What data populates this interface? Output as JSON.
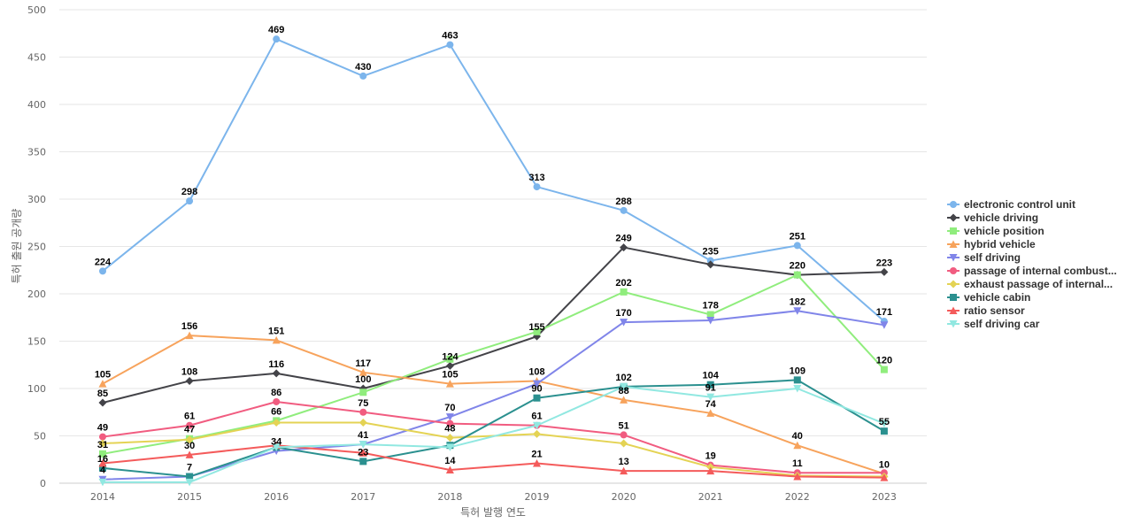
{
  "chart_data": {
    "type": "line",
    "title": "",
    "xlabel": "특허 발행 연도",
    "ylabel": "특허 출원 공개량",
    "categories": [
      "2014",
      "2015",
      "2016",
      "2017",
      "2018",
      "2019",
      "2020",
      "2021",
      "2022",
      "2023"
    ],
    "y_ticks": [
      "0",
      "50",
      "100",
      "150",
      "200",
      "250",
      "300",
      "350",
      "400",
      "450",
      "500"
    ],
    "ylim": [
      0,
      500
    ],
    "grid": true,
    "legend_position": "right",
    "series": [
      {
        "name": "electronic control unit",
        "color": "#7cb5ec",
        "marker": "circle",
        "values": [
          224,
          298,
          469,
          430,
          463,
          313,
          288,
          235,
          251,
          171
        ],
        "labels": [
          "224",
          "298",
          "469",
          "430",
          "463",
          "313",
          "288",
          "235",
          "251",
          "171"
        ]
      },
      {
        "name": "vehicle driving",
        "color": "#434348",
        "marker": "diamond",
        "values": [
          85,
          108,
          116,
          100,
          124,
          155,
          249,
          231,
          220,
          223
        ],
        "labels": [
          "85",
          "108",
          "116",
          "100",
          "124",
          "155",
          "249",
          "",
          "",
          "223"
        ]
      },
      {
        "name": "vehicle position",
        "color": "#90ed7d",
        "marker": "square",
        "values": [
          31,
          47,
          66,
          96,
          131,
          160,
          202,
          178,
          220,
          120
        ],
        "labels": [
          "31",
          "47",
          "66",
          "",
          "",
          "",
          "202",
          "178",
          "220",
          "120"
        ]
      },
      {
        "name": "hybrid vehicle",
        "color": "#f7a35c",
        "marker": "triangle",
        "values": [
          105,
          156,
          151,
          117,
          105,
          108,
          88,
          74,
          40,
          10
        ],
        "labels": [
          "105",
          "156",
          "151",
          "117",
          "105",
          "108",
          "88",
          "74",
          "40",
          "10"
        ]
      },
      {
        "name": "self driving",
        "color": "#8085e9",
        "marker": "triangle-down",
        "values": [
          4,
          7,
          34,
          41,
          70,
          105,
          170,
          172,
          182,
          167
        ],
        "labels": [
          "4",
          "7",
          "34",
          "41",
          "70",
          "",
          "170",
          "",
          "182",
          ""
        ]
      },
      {
        "name": "passage of internal combust...",
        "color": "#f15c80",
        "marker": "circle",
        "values": [
          49,
          61,
          86,
          75,
          63,
          61,
          51,
          19,
          11,
          11
        ],
        "labels": [
          "49",
          "61",
          "86",
          "75",
          "",
          "61",
          "51",
          "19",
          "11",
          ""
        ]
      },
      {
        "name": "exhaust passage of internal...",
        "color": "#e4d354",
        "marker": "diamond",
        "values": [
          42,
          46,
          64,
          64,
          48,
          52,
          42,
          17,
          8,
          7
        ],
        "labels": [
          "",
          "",
          "",
          "",
          "48",
          "",
          "",
          "",
          "",
          ""
        ]
      },
      {
        "name": "vehicle cabin",
        "color": "#2b908f",
        "marker": "square",
        "values": [
          16,
          7,
          38,
          23,
          40,
          90,
          102,
          104,
          109,
          55
        ],
        "labels": [
          "16",
          "",
          "",
          "23",
          "",
          "90",
          "102",
          "104",
          "109",
          "55"
        ]
      },
      {
        "name": "ratio sensor",
        "color": "#f45b5b",
        "marker": "triangle",
        "values": [
          21,
          30,
          40,
          32,
          14,
          21,
          13,
          13,
          7,
          6
        ],
        "labels": [
          "",
          "30",
          "",
          "",
          "14",
          "21",
          "13",
          "",
          "",
          ""
        ]
      },
      {
        "name": "self driving car",
        "color": "#91e8e1",
        "marker": "triangle-down",
        "values": [
          1,
          1,
          38,
          41,
          38,
          61,
          102,
          91,
          100,
          63
        ],
        "labels": [
          "",
          "",
          "",
          "",
          "",
          "",
          "",
          "91",
          "",
          ""
        ]
      }
    ]
  }
}
